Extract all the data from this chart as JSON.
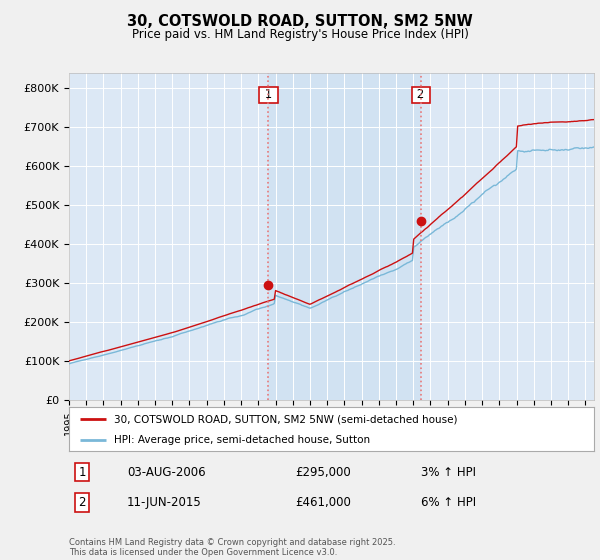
{
  "title": "30, COTSWOLD ROAD, SUTTON, SM2 5NW",
  "subtitle": "Price paid vs. HM Land Registry's House Price Index (HPI)",
  "ylabel_ticks": [
    "£0",
    "£100K",
    "£200K",
    "£300K",
    "£400K",
    "£500K",
    "£600K",
    "£700K",
    "£800K"
  ],
  "ytick_values": [
    0,
    100000,
    200000,
    300000,
    400000,
    500000,
    600000,
    700000,
    800000
  ],
  "ylim": [
    0,
    840000
  ],
  "xlim_years": [
    1995,
    2025.5
  ],
  "sale1": {
    "date_x": 2006.58,
    "price": 295000,
    "label": "1"
  },
  "sale2": {
    "date_x": 2015.44,
    "price": 461000,
    "label": "2"
  },
  "hpi_color": "#7ab8d8",
  "price_color": "#cc1111",
  "dashed_color": "#e87878",
  "bg_chart": "#dce8f5",
  "bg_shade": "#c8ddf0",
  "bg_figure": "#f0f0f0",
  "grid_color": "#ffffff",
  "legend_label_price": "30, COTSWOLD ROAD, SUTTON, SM2 5NW (semi-detached house)",
  "legend_label_hpi": "HPI: Average price, semi-detached house, Sutton",
  "footer": "Contains HM Land Registry data © Crown copyright and database right 2025.\nThis data is licensed under the Open Government Licence v3.0."
}
